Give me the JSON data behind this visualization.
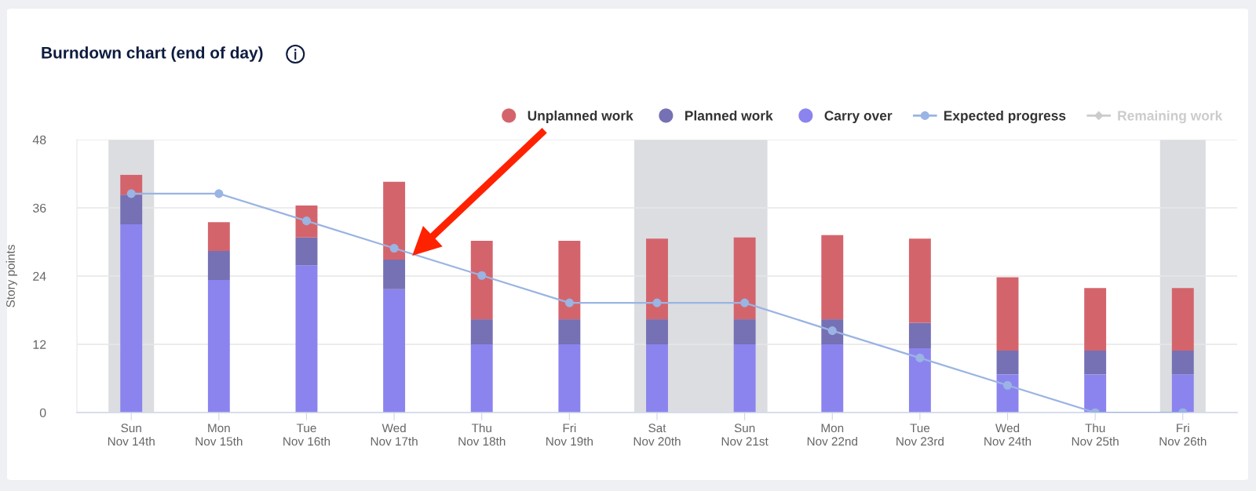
{
  "chart_data": {
    "type": "bar",
    "title": "Burndown chart (end of day)",
    "ylabel": "Story points",
    "categories": [
      "Sun\nNov 14th",
      "Mon\nNov 15th",
      "Tue\nNov 16th",
      "Wed\nNov 17th",
      "Thu\nNov 18th",
      "Fri\nNov 19th",
      "Sat\nNov 20th",
      "Sun\nNov 21st",
      "Mon\nNov 22nd",
      "Tue\nNov 23rd",
      "Wed\nNov 24th",
      "Thu\nNov 25th",
      "Fri\nNov 26th"
    ],
    "stacked": true,
    "series": [
      {
        "name": "Carry over",
        "color": "#8b84ee",
        "values": [
          33.1,
          23.3,
          25.9,
          21.7,
          12,
          12,
          12,
          12,
          12,
          11.3,
          6.7,
          6.7,
          6.7
        ]
      },
      {
        "name": "Planned work",
        "color": "#7670b4",
        "values": [
          5.2,
          5.1,
          4.9,
          5.2,
          4.4,
          4.4,
          4.4,
          4.4,
          4.4,
          4.5,
          4.2,
          4.2,
          4.2
        ]
      },
      {
        "name": "Unplanned work",
        "color": "#d4646c",
        "values": [
          3.5,
          5.1,
          5.6,
          13.7,
          13.8,
          13.8,
          14.2,
          14.4,
          14.8,
          14.8,
          12.9,
          11.0,
          11.0
        ]
      },
      {
        "name": "Expected progress",
        "type": "line",
        "color": "#9ab4e3",
        "marker": "circle",
        "line_style": "solid",
        "values": [
          38.5,
          38.5,
          33.7,
          28.9,
          24.1,
          19.3,
          19.3,
          19.3,
          14.4,
          9.6,
          4.8,
          0,
          0
        ]
      },
      {
        "name": "Remaining work",
        "type": "line",
        "color": "#cccccc",
        "marker": "diamond",
        "line_style": "solid",
        "values": [
          null,
          null,
          null,
          null,
          null,
          null,
          null,
          null,
          null,
          null,
          null,
          null,
          null
        ]
      }
    ],
    "ylim": [
      0,
      48
    ],
    "yticks": [
      0,
      12,
      24,
      36,
      48
    ],
    "grid": "y",
    "legend": "top right",
    "bands": [
      {
        "axis": "x",
        "from": "Sun\nNov 14th",
        "to": "Sun\nNov 14th",
        "color": "#dcdde1"
      },
      {
        "axis": "x",
        "from": "Sat\nNov 20th",
        "to": "Sun\nNov 21st",
        "color": "#dcdde1"
      },
      {
        "axis": "x",
        "from": "Fri\nNov 26th",
        "to": "Fri\nNov 26th",
        "color": "#dcdde1"
      }
    ]
  }
}
